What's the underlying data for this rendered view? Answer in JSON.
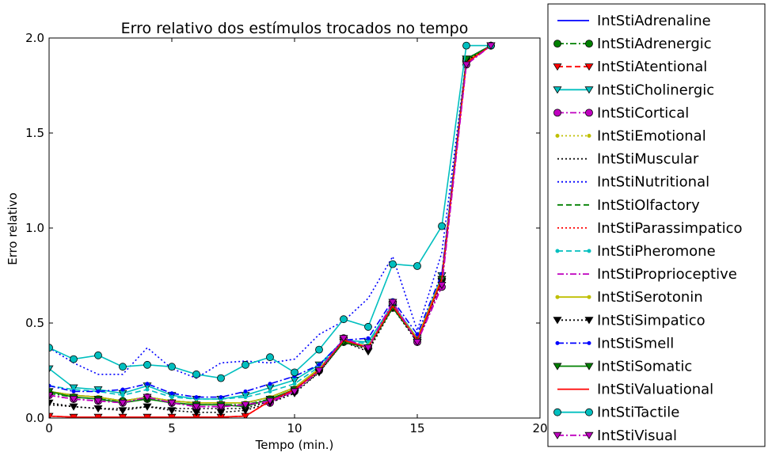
{
  "chart_data": {
    "type": "line",
    "title": "Erro relativo dos estímulos trocados no tempo",
    "xlabel": "Tempo (min.)",
    "ylabel": "Erro relativo",
    "xlim": [
      0,
      20
    ],
    "ylim": [
      0,
      2
    ],
    "xticks": [
      "0",
      "5",
      "10",
      "15",
      "20"
    ],
    "yticks": [
      "0.0",
      "0.5",
      "1.0",
      "1.5",
      "2.0"
    ],
    "grid": false,
    "legend_position": "right, outside plot",
    "x": [
      0,
      1,
      2,
      3,
      4,
      5,
      6,
      7,
      8,
      9,
      10,
      11,
      12,
      13,
      14,
      15,
      16,
      17,
      18
    ],
    "series": [
      {
        "name": "IntStiAdrenaline",
        "color": "#0000ff",
        "line": "solid",
        "marker": "none",
        "values": [
          0.14,
          0.12,
          0.11,
          0.09,
          0.11,
          0.09,
          0.08,
          0.08,
          0.08,
          0.11,
          0.16,
          0.26,
          0.4,
          0.38,
          0.59,
          0.42,
          0.74,
          1.88,
          1.96
        ]
      },
      {
        "name": "IntStiAdrenergic",
        "color": "#008000",
        "line": "dashdot",
        "marker": "circle",
        "values": [
          0.13,
          0.11,
          0.1,
          0.09,
          0.1,
          0.08,
          0.07,
          0.07,
          0.07,
          0.1,
          0.15,
          0.25,
          0.4,
          0.37,
          0.58,
          0.41,
          0.73,
          1.88,
          1.96
        ]
      },
      {
        "name": "IntStiAtentional",
        "color": "#ff0000",
        "line": "dashed",
        "marker": "triangle-down",
        "values": [
          0.01,
          0.005,
          0.005,
          0.005,
          0.005,
          0.005,
          0.005,
          0.005,
          0.01,
          0.09,
          0.15,
          0.25,
          0.41,
          0.37,
          0.59,
          0.41,
          0.73,
          1.87,
          1.96
        ]
      },
      {
        "name": "IntStiCholinergic",
        "color": "#00bfbf",
        "line": "solid",
        "marker": "triangle-down",
        "values": [
          0.26,
          0.16,
          0.15,
          0.13,
          0.17,
          0.12,
          0.1,
          0.1,
          0.12,
          0.16,
          0.2,
          0.28,
          0.41,
          0.4,
          0.6,
          0.42,
          0.75,
          1.89,
          1.96
        ]
      },
      {
        "name": "IntStiCortical",
        "color": "#bf00bf",
        "line": "dashdot",
        "marker": "circle",
        "values": [
          0.12,
          0.1,
          0.09,
          0.08,
          0.11,
          0.08,
          0.06,
          0.06,
          0.07,
          0.08,
          0.14,
          0.25,
          0.42,
          0.37,
          0.61,
          0.4,
          0.69,
          1.86,
          1.96
        ]
      },
      {
        "name": "IntStiEmotional",
        "color": "#bfbf00",
        "line": "dotted",
        "marker": "point",
        "values": [
          0.14,
          0.12,
          0.11,
          0.09,
          0.11,
          0.09,
          0.08,
          0.08,
          0.08,
          0.11,
          0.16,
          0.26,
          0.4,
          0.38,
          0.59,
          0.42,
          0.74,
          1.88,
          1.96
        ]
      },
      {
        "name": "IntStiMuscular",
        "color": "#000000",
        "line": "dotted",
        "marker": "none",
        "values": [
          0.07,
          0.06,
          0.05,
          0.05,
          0.06,
          0.05,
          0.05,
          0.05,
          0.05,
          0.09,
          0.14,
          0.24,
          0.4,
          0.36,
          0.58,
          0.4,
          0.72,
          1.88,
          1.96
        ]
      },
      {
        "name": "IntStiNutritional",
        "color": "#0000ff",
        "line": "dotted",
        "marker": "none",
        "values": [
          0.37,
          0.29,
          0.23,
          0.23,
          0.37,
          0.26,
          0.21,
          0.29,
          0.3,
          0.29,
          0.31,
          0.44,
          0.51,
          0.63,
          0.85,
          0.46,
          0.87,
          1.89,
          1.96
        ]
      },
      {
        "name": "IntStiOlfactory",
        "color": "#008000",
        "line": "dashed",
        "marker": "none",
        "values": [
          0.14,
          0.12,
          0.11,
          0.09,
          0.11,
          0.09,
          0.08,
          0.08,
          0.08,
          0.11,
          0.16,
          0.26,
          0.4,
          0.38,
          0.59,
          0.42,
          0.74,
          1.88,
          1.96
        ]
      },
      {
        "name": "IntStiParassimpatico",
        "color": "#ff0000",
        "line": "dotted",
        "marker": "none",
        "values": [
          0.01,
          0.005,
          0.005,
          0.005,
          0.005,
          0.005,
          0.005,
          0.005,
          0.01,
          0.09,
          0.15,
          0.25,
          0.41,
          0.37,
          0.59,
          0.41,
          0.73,
          1.87,
          1.96
        ]
      },
      {
        "name": "IntStiPheromone",
        "color": "#00bfbf",
        "line": "dashed",
        "marker": "point",
        "values": [
          0.17,
          0.15,
          0.14,
          0.12,
          0.15,
          0.11,
          0.1,
          0.1,
          0.11,
          0.14,
          0.18,
          0.27,
          0.41,
          0.39,
          0.6,
          0.42,
          0.74,
          1.88,
          1.96
        ]
      },
      {
        "name": "IntStiProprioceptive",
        "color": "#bf00bf",
        "line": "dashdot",
        "marker": "none",
        "values": [
          0.12,
          0.1,
          0.09,
          0.08,
          0.11,
          0.08,
          0.06,
          0.06,
          0.07,
          0.09,
          0.14,
          0.25,
          0.42,
          0.37,
          0.61,
          0.4,
          0.7,
          1.86,
          1.96
        ]
      },
      {
        "name": "IntStiSerotonin",
        "color": "#bfbf00",
        "line": "solid",
        "marker": "point",
        "values": [
          0.14,
          0.12,
          0.11,
          0.09,
          0.11,
          0.09,
          0.08,
          0.08,
          0.08,
          0.11,
          0.16,
          0.26,
          0.4,
          0.38,
          0.59,
          0.42,
          0.74,
          1.88,
          1.96
        ]
      },
      {
        "name": "IntStiSimpatico",
        "color": "#000000",
        "line": "dotted",
        "marker": "triangle-down",
        "values": [
          0.08,
          0.06,
          0.05,
          0.04,
          0.06,
          0.04,
          0.03,
          0.03,
          0.04,
          0.08,
          0.13,
          0.24,
          0.4,
          0.35,
          0.58,
          0.4,
          0.72,
          1.88,
          1.96
        ]
      },
      {
        "name": "IntStiSmell",
        "color": "#0000ff",
        "line": "dashdot",
        "marker": "point",
        "values": [
          0.17,
          0.14,
          0.14,
          0.15,
          0.18,
          0.13,
          0.11,
          0.11,
          0.14,
          0.18,
          0.22,
          0.28,
          0.41,
          0.42,
          0.62,
          0.44,
          0.76,
          1.89,
          1.96
        ]
      },
      {
        "name": "IntStiSomatic",
        "color": "#008000",
        "line": "solid",
        "marker": "triangle-down",
        "values": [
          0.14,
          0.11,
          0.1,
          0.08,
          0.1,
          0.08,
          0.07,
          0.07,
          0.06,
          0.1,
          0.15,
          0.25,
          0.4,
          0.37,
          0.58,
          0.41,
          0.73,
          1.89,
          1.96
        ]
      },
      {
        "name": "IntStiValuational",
        "color": "#ff0000",
        "line": "solid",
        "marker": "none",
        "values": [
          0.01,
          0.005,
          0.005,
          0.005,
          0.005,
          0.005,
          0.005,
          0.005,
          0.01,
          0.09,
          0.15,
          0.25,
          0.41,
          0.37,
          0.59,
          0.41,
          0.73,
          1.87,
          1.96
        ]
      },
      {
        "name": "IntStiTactile",
        "color": "#00bfbf",
        "line": "solid",
        "marker": "circle",
        "values": [
          0.37,
          0.31,
          0.33,
          0.27,
          0.28,
          0.27,
          0.23,
          0.21,
          0.28,
          0.32,
          0.24,
          0.36,
          0.52,
          0.48,
          0.81,
          0.8,
          1.01,
          1.96,
          1.96
        ]
      },
      {
        "name": "IntStiVisual",
        "color": "#bf00bf",
        "line": "dashdot",
        "marker": "triangle-down",
        "values": [
          0.12,
          0.1,
          0.09,
          0.08,
          0.11,
          0.08,
          0.06,
          0.06,
          0.07,
          0.09,
          0.14,
          0.25,
          0.42,
          0.37,
          0.61,
          0.4,
          0.7,
          1.86,
          1.96
        ]
      }
    ]
  }
}
